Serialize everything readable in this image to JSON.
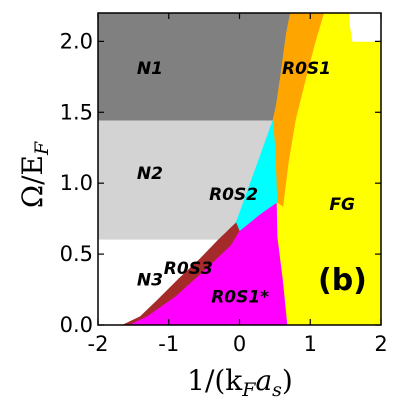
{
  "chart_data": {
    "type": "area",
    "title": "",
    "panel_label": "(b)",
    "xlim": [
      -2,
      2
    ],
    "ylim": [
      0,
      2.2
    ],
    "xticks": [
      -2,
      -1,
      0,
      1,
      2
    ],
    "xtick_labels": [
      "-2",
      "-1",
      "0",
      "1",
      "2"
    ],
    "yticks": [
      0.0,
      0.5,
      1.0,
      1.5,
      2.0
    ],
    "ytick_labels": [
      "0.0",
      "0.5",
      "1.0",
      "1.5",
      "2.0"
    ],
    "xlabel": {
      "main": "1/(k",
      "sub1": "F",
      "mid": "a",
      "sub2": "s",
      "end": ")"
    },
    "ylabel": {
      "main": "Ω/E",
      "sub": "F"
    },
    "grid": false,
    "regions": [
      {
        "name": "N1",
        "color": "#808080",
        "label_pos": [
          -1.45,
          1.77
        ],
        "polygon": [
          [
            -2,
            2.2
          ],
          [
            0.72,
            2.2
          ],
          [
            0.66,
            2.05
          ],
          [
            0.58,
            1.75
          ],
          [
            0.52,
            1.55
          ],
          [
            0.47,
            1.44
          ],
          [
            -2,
            1.44
          ]
        ]
      },
      {
        "name": "N2",
        "color": "#d3d3d3",
        "label_pos": [
          -1.45,
          1.03
        ],
        "polygon": [
          [
            -2,
            1.44
          ],
          [
            0.47,
            1.44
          ],
          [
            -0.05,
            0.72
          ],
          [
            -0.3,
            0.6
          ],
          [
            -2,
            0.6
          ]
        ]
      },
      {
        "name": "N3",
        "color": "#ffffff",
        "label_pos": [
          -1.45,
          0.28
        ],
        "polygon": [
          [
            -2,
            0.6
          ],
          [
            -0.3,
            0.6
          ],
          [
            -0.55,
            0.47
          ],
          [
            -0.85,
            0.33
          ],
          [
            -1.15,
            0.18
          ],
          [
            -1.4,
            0.06
          ],
          [
            -1.65,
            0.0
          ],
          [
            -2,
            0.0
          ]
        ]
      },
      {
        "name": "R0S1",
        "color": "#ffa500",
        "label_pos": [
          0.6,
          1.77
        ],
        "polygon": [
          [
            0.72,
            2.2
          ],
          [
            1.2,
            2.2
          ],
          [
            1.08,
            2.0
          ],
          [
            0.95,
            1.75
          ],
          [
            0.8,
            1.45
          ],
          [
            0.7,
            1.15
          ],
          [
            0.65,
            0.95
          ],
          [
            0.62,
            0.83
          ],
          [
            0.53,
            0.86
          ],
          [
            0.52,
            1.0
          ],
          [
            0.5,
            1.25
          ],
          [
            0.47,
            1.44
          ],
          [
            0.52,
            1.55
          ],
          [
            0.58,
            1.75
          ],
          [
            0.66,
            2.05
          ]
        ]
      },
      {
        "name": "R0S2",
        "color": "#00ffff",
        "label_pos": [
          -0.43,
          0.88
        ],
        "polygon": [
          [
            0.47,
            1.44
          ],
          [
            0.5,
            1.25
          ],
          [
            0.52,
            1.0
          ],
          [
            0.53,
            0.86
          ],
          [
            0.3,
            0.78
          ],
          [
            0.0,
            0.66
          ],
          [
            -0.05,
            0.72
          ]
        ]
      },
      {
        "name": "R0S3",
        "color": "#a52a2a",
        "label_pos": [
          -1.07,
          0.36
        ],
        "polygon": [
          [
            -0.05,
            0.72
          ],
          [
            0.0,
            0.66
          ],
          [
            -0.12,
            0.56
          ],
          [
            -0.5,
            0.38
          ],
          [
            -0.9,
            0.2
          ],
          [
            -1.3,
            0.06
          ],
          [
            -1.55,
            0.0
          ],
          [
            -1.65,
            0.0
          ],
          [
            -1.4,
            0.06
          ],
          [
            -1.15,
            0.18
          ],
          [
            -0.85,
            0.33
          ],
          [
            -0.55,
            0.47
          ],
          [
            -0.3,
            0.6
          ]
        ]
      },
      {
        "name": "R0S1*",
        "color": "#ff00ff",
        "label_pos": [
          -0.4,
          0.16
        ],
        "polygon": [
          [
            -1.55,
            0.0
          ],
          [
            -1.3,
            0.06
          ],
          [
            -0.9,
            0.2
          ],
          [
            -0.5,
            0.38
          ],
          [
            -0.12,
            0.56
          ],
          [
            0.0,
            0.66
          ],
          [
            0.3,
            0.78
          ],
          [
            0.53,
            0.86
          ],
          [
            0.54,
            0.62
          ],
          [
            0.62,
            0.3
          ],
          [
            0.68,
            0.0
          ]
        ]
      },
      {
        "name": "FG",
        "color": "#ffff00",
        "label_pos": [
          1.27,
          0.81
        ],
        "polygon": [
          [
            1.2,
            2.2
          ],
          [
            1.55,
            2.2
          ],
          [
            1.56,
            2.12
          ],
          [
            1.6,
            2.0
          ],
          [
            2,
            2.0
          ],
          [
            2,
            0.0
          ],
          [
            0.68,
            0.0
          ],
          [
            0.62,
            0.3
          ],
          [
            0.54,
            0.62
          ],
          [
            0.53,
            0.86
          ],
          [
            0.62,
            0.83
          ],
          [
            0.65,
            0.95
          ],
          [
            0.7,
            1.15
          ],
          [
            0.8,
            1.45
          ],
          [
            0.95,
            1.75
          ],
          [
            1.08,
            2.0
          ]
        ]
      },
      {
        "name": "",
        "color": "#ffffff",
        "label_pos": null,
        "polygon": [
          [
            1.55,
            2.2
          ],
          [
            2,
            2.2
          ],
          [
            2,
            2.0
          ],
          [
            1.6,
            2.0
          ],
          [
            1.56,
            2.12
          ]
        ]
      }
    ],
    "label_colors": {
      "text": "#000000",
      "axes": "#000000"
    }
  }
}
